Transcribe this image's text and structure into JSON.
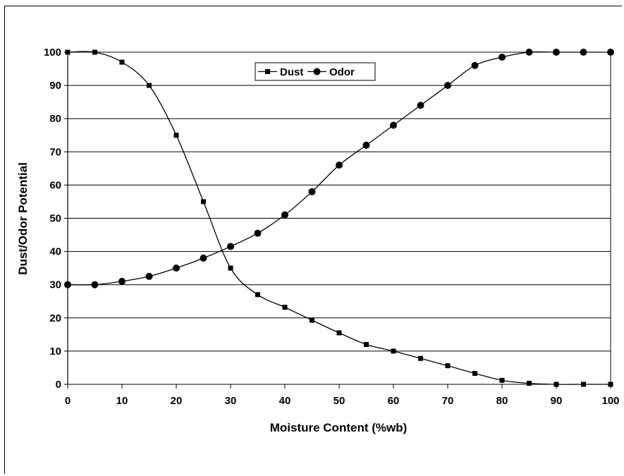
{
  "chart_data": {
    "type": "line",
    "xlabel": "Moisture Content (%wb)",
    "ylabel": "Dust/Odor Potential",
    "xlim": [
      0,
      100
    ],
    "ylim": [
      0,
      100
    ],
    "xticks": [
      0,
      10,
      20,
      30,
      40,
      50,
      60,
      70,
      80,
      90,
      100
    ],
    "yticks": [
      0,
      10,
      20,
      30,
      40,
      50,
      60,
      70,
      80,
      90,
      100
    ],
    "grid": "horizontal",
    "legend_position": "top-center",
    "series": [
      {
        "name": "Dust",
        "marker": "square",
        "x": [
          0,
          5,
          10,
          15,
          20,
          25,
          30,
          35,
          40,
          45,
          50,
          55,
          60,
          65,
          70,
          75,
          80,
          85,
          90,
          95,
          100
        ],
        "values": [
          100,
          100,
          97,
          90,
          75,
          55,
          35,
          27,
          23.2,
          19.3,
          15.5,
          12,
          10,
          7.8,
          5.6,
          3.3,
          1.2,
          0.3,
          0,
          0,
          0
        ]
      },
      {
        "name": "Odor",
        "marker": "circle",
        "x": [
          0,
          5,
          10,
          15,
          20,
          25,
          30,
          35,
          40,
          45,
          50,
          55,
          60,
          65,
          70,
          75,
          80,
          85,
          90,
          95,
          100
        ],
        "values": [
          30,
          30,
          31,
          32.5,
          35,
          38,
          41.5,
          45.5,
          51,
          58,
          66,
          72,
          78,
          84,
          90,
          96,
          98.5,
          100,
          100,
          100,
          100
        ]
      }
    ]
  }
}
